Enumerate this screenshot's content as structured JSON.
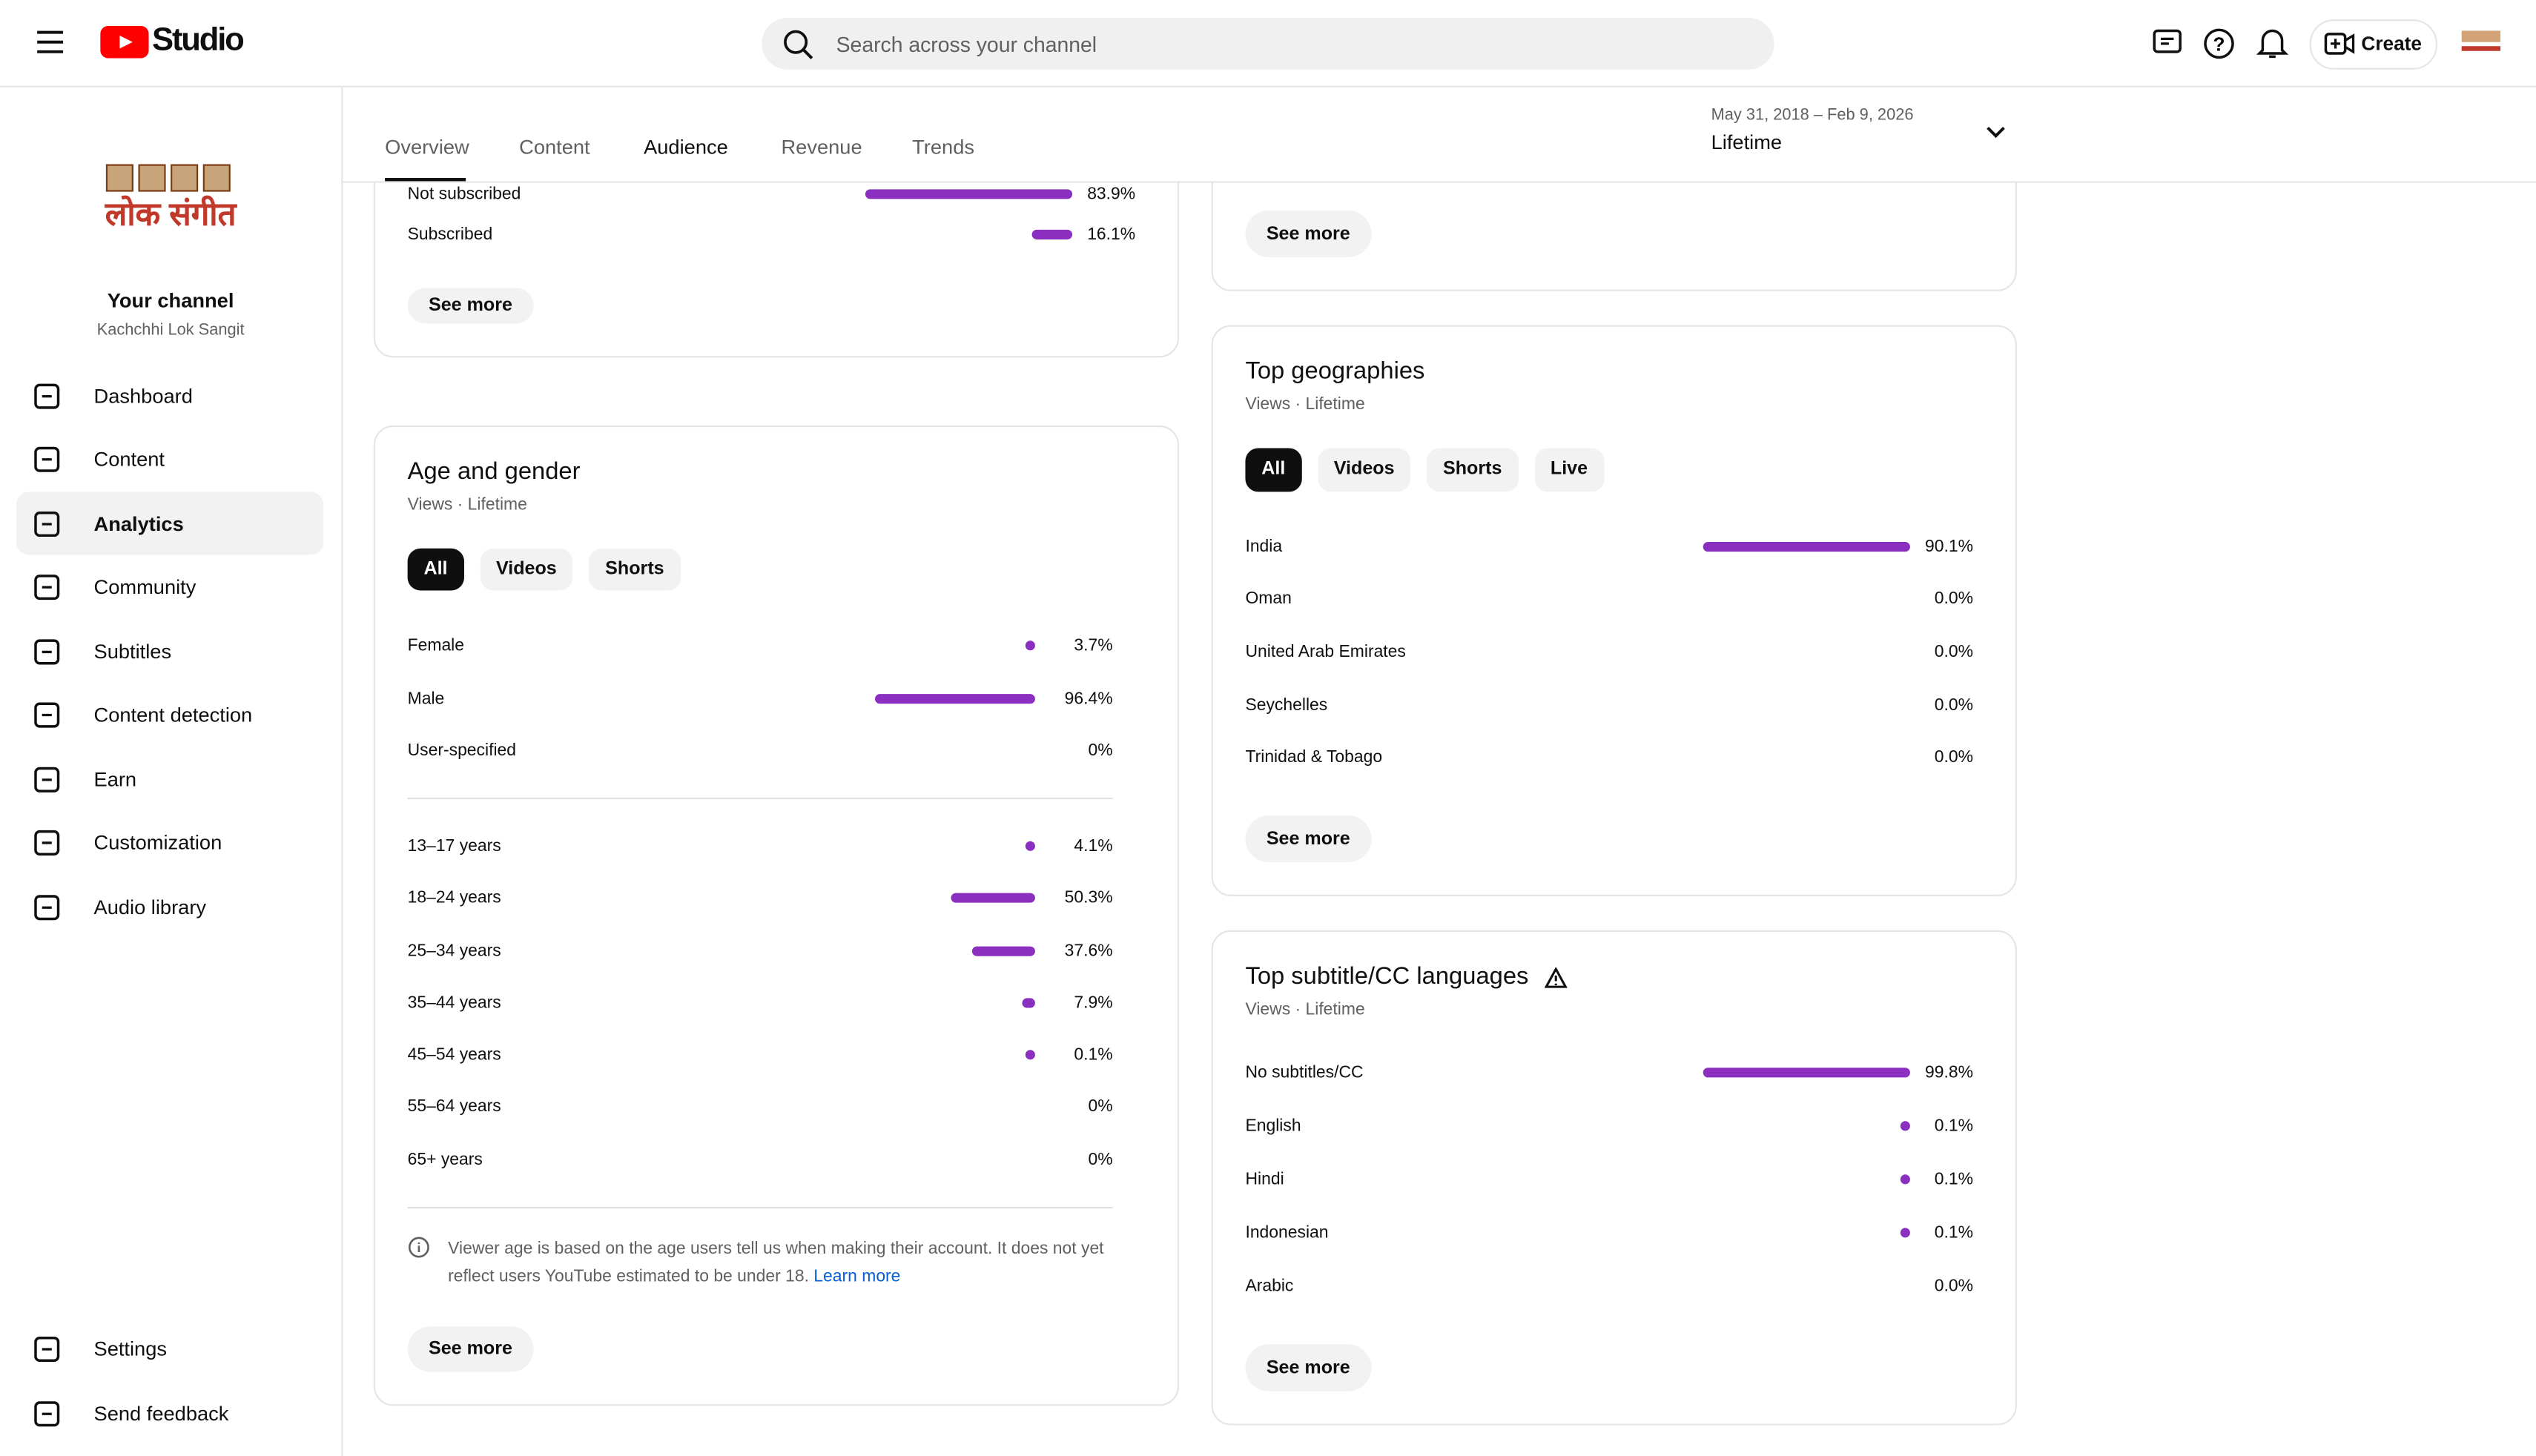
{
  "topbar": {
    "brand": "Studio",
    "search_placeholder": "Search across your channel",
    "create": "Create"
  },
  "sidebar": {
    "logo_text": "लोक संगीत",
    "channel_title": "Your channel",
    "channel_name": "Kachchhi Lok Sangit",
    "nav": [
      "Dashboard",
      "Content",
      "Analytics",
      "Community",
      "Subtitles",
      "Content detection",
      "Earn",
      "Customization",
      "Audio library"
    ],
    "bottom_nav": [
      "Settings",
      "Send feedback"
    ]
  },
  "tabs": [
    "Overview",
    "Content",
    "Audience",
    "Revenue",
    "Trends"
  ],
  "date_range": {
    "range": "May 31, 2018 – Feb 9, 2026",
    "period": "Lifetime"
  },
  "cards": [
    {
      "groups": [
        [
          {
            "label": "Not subscribed",
            "value": 83.9,
            "value_label": "83.9%"
          },
          {
            "label": "Subscribed",
            "value": 16.1,
            "value_label": "16.1%"
          }
        ]
      ],
      "button": "See more"
    },
    {
      "title": "Age and gender",
      "subtitle": "Views · Lifetime",
      "chips": [
        "All",
        "Videos",
        "Shorts"
      ],
      "groups": [
        [
          {
            "label": "Female",
            "value": 3.7,
            "value_label": "3.7%"
          },
          {
            "label": "Male",
            "value": 96.4,
            "value_label": "96.4%"
          },
          {
            "label": "User-specified",
            "value": 0,
            "value_label": "0%"
          }
        ],
        [
          {
            "label": "13–17 years",
            "value": 4.1,
            "value_label": "4.1%"
          },
          {
            "label": "18–24 years",
            "value": 50.3,
            "value_label": "50.3%"
          },
          {
            "label": "25–34 years",
            "value": 37.6,
            "value_label": "37.6%"
          },
          {
            "label": "35–44 years",
            "value": 7.9,
            "value_label": "7.9%"
          },
          {
            "label": "45–54 years",
            "value": 0.1,
            "value_label": "0.1%"
          },
          {
            "label": "55–64 years",
            "value": 0,
            "value_label": "0%"
          },
          {
            "label": "65+ years",
            "value": 0,
            "value_label": "0%"
          }
        ]
      ],
      "note": "Viewer age is based on the age users tell us when making their account. It does not yet reflect users YouTube estimated to be under 18.",
      "note_link": "Learn more",
      "button": "See more"
    },
    {
      "button": "See more"
    },
    {
      "title": "Top geographies",
      "subtitle": "Views · Lifetime",
      "chips": [
        "All",
        "Videos",
        "Shorts",
        "Live"
      ],
      "groups": [
        [
          {
            "label": "India",
            "value": 90.1,
            "value_label": "90.1%"
          },
          {
            "label": "Oman",
            "value": 0.0,
            "value_label": "0.0%"
          },
          {
            "label": "United Arab Emirates",
            "value": 0.0,
            "value_label": "0.0%"
          },
          {
            "label": "Seychelles",
            "value": 0.0,
            "value_label": "0.0%"
          },
          {
            "label": "Trinidad & Tobago",
            "value": 0.0,
            "value_label": "0.0%"
          }
        ]
      ],
      "button": "See more"
    },
    {
      "title": "Top subtitle/CC languages",
      "subtitle": "Views · Lifetime",
      "groups": [
        [
          {
            "label": "No subtitles/CC",
            "value": 99.8,
            "value_label": "99.8%"
          },
          {
            "label": "English",
            "value": 0.1,
            "value_label": "0.1%"
          },
          {
            "label": "Hindi",
            "value": 0.1,
            "value_label": "0.1%"
          },
          {
            "label": "Indonesian",
            "value": 0.1,
            "value_label": "0.1%"
          },
          {
            "label": "Arabic",
            "value": 0.0,
            "value_label": "0.0%"
          }
        ]
      ],
      "button": "See more"
    }
  ]
}
